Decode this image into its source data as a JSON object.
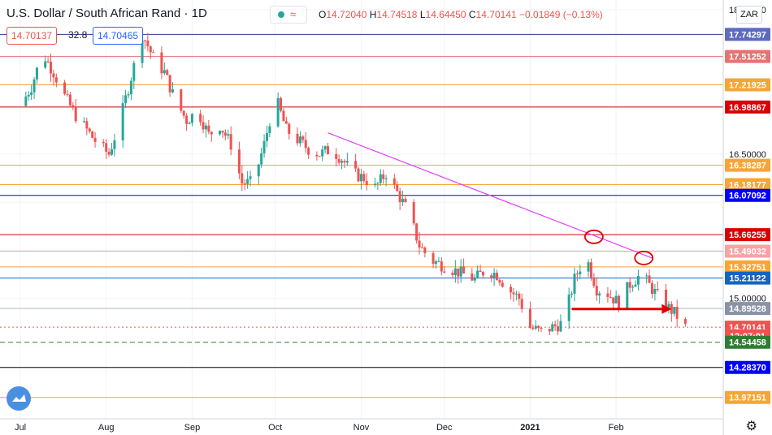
{
  "header": {
    "title": "U.S. Dollar / South African Rand · 1D",
    "open_label": "O",
    "open": "14.72040",
    "high_label": "H",
    "high": "14.74518",
    "low_label": "L",
    "low": "14.64450",
    "close_label": "C",
    "close": "14.70141",
    "change": "−0.01849 (−0.13%)",
    "bid": "14.70137",
    "spread": "32.8",
    "ask": "14.70465",
    "currency": "ZAR"
  },
  "colors": {
    "down": "#ef5350",
    "up": "#26a69a",
    "blue_line": "#0000ff",
    "red_line": "#d80000",
    "orange_line": "#f7a534",
    "pink_line": "#f5a3a3",
    "trendline": "#e040fb",
    "navy_line": "#2b3a8c"
  },
  "chart_data": {
    "type": "candlestick",
    "x_ticks": [
      "Jul",
      "Aug",
      "Sep",
      "Oct",
      "Nov",
      "Dec",
      "2021",
      "Feb"
    ],
    "x_tick_days": [
      0,
      31,
      62,
      92,
      123,
      153,
      184,
      215
    ],
    "y_ticks": [
      18.0,
      17.5,
      17.0,
      16.5,
      16.0,
      15.5,
      15.0
    ],
    "y_tick_labels": [
      "18.00000",
      "",
      "",
      "16.50000",
      "",
      "",
      "15.00000"
    ],
    "ylim": [
      13.75,
      18.1
    ],
    "x_start": "2020-06-19",
    "x_end": "2021-02-10",
    "levels": [
      {
        "value": 17.74297,
        "label": "17.74297",
        "color": "#2b3a8c",
        "label_bg": "#5c6bc0"
      },
      {
        "value": 17.51252,
        "label": "17.51252",
        "color": "#e57373",
        "label_bg": "#e57373"
      },
      {
        "value": 17.21925,
        "label": "17.21925",
        "color": "#f7a534",
        "label_bg": "#f7a534"
      },
      {
        "value": 16.98867,
        "label": "16.98867",
        "color": "#d80000",
        "label_bg": "#d80000"
      },
      {
        "value": 16.38287,
        "label": "16.38287",
        "color": "#f7a534",
        "label_bg": "#f7a534"
      },
      {
        "value": 16.18177,
        "label": "16.18177",
        "color": "#f7a534",
        "label_bg": "#f7a534"
      },
      {
        "value": 16.07092,
        "label": "16.07092",
        "color": "#0000ff",
        "label_bg": "#0000ff"
      },
      {
        "value": 15.66255,
        "label": "15.66255",
        "color": "#d80000",
        "label_bg": "#d80000"
      },
      {
        "value": 15.49032,
        "label": "15.49032",
        "color": "#f5a3a3",
        "label_bg": "#f5a3a3"
      },
      {
        "value": 15.32751,
        "label": "15.32751",
        "color": "#f7a534",
        "label_bg": "#f7a534"
      },
      {
        "value": 15.21122,
        "label": "15.21122",
        "color": "#1565c0",
        "label_bg": "#1565c0"
      },
      {
        "value": 14.89528,
        "label": "14.89528",
        "color": "#b0b8c8",
        "label_bg": "#8a93a6"
      },
      {
        "value": 14.70141,
        "label": "14.70141",
        "color": "#ef5350",
        "label_bg": "#ef5350",
        "dotted": true
      },
      {
        "value": 14.61,
        "label": "12:07:01",
        "color": "#ef5350",
        "label_bg": "#ef5350",
        "nolines": true
      },
      {
        "value": 14.54458,
        "label": "14.54458",
        "color": "#2e7d32",
        "label_bg": "#2e7d32",
        "dashed": true
      },
      {
        "value": 14.2837,
        "label": "14.28370",
        "color": "#000000",
        "label_bg": "#0000ff"
      },
      {
        "value": 13.97151,
        "label": "13.97151",
        "color": "#f7a534",
        "label_bg": "#f7a534"
      }
    ],
    "trendline": {
      "from": {
        "day": 111,
        "value": 16.72
      },
      "to": {
        "day": 228,
        "value": 15.42
      }
    },
    "arrow": {
      "from": {
        "day": 199,
        "value": 14.89
      },
      "to": {
        "day": 235,
        "value": 14.89
      }
    },
    "ellipses": [
      {
        "day": 207,
        "value": 15.64
      },
      {
        "day": 225,
        "value": 15.42
      }
    ],
    "keypoints": [
      [
        0,
        17.0
      ],
      [
        4,
        17.2
      ],
      [
        8,
        17.55
      ],
      [
        12,
        17.35
      ],
      [
        16,
        17.1
      ],
      [
        20,
        16.9
      ],
      [
        24,
        16.75
      ],
      [
        28,
        16.6
      ],
      [
        32,
        16.5
      ],
      [
        36,
        16.85
      ],
      [
        40,
        17.3
      ],
      [
        44,
        17.75
      ],
      [
        48,
        17.5
      ],
      [
        52,
        17.35
      ],
      [
        56,
        17.05
      ],
      [
        60,
        16.85
      ],
      [
        64,
        16.95
      ],
      [
        68,
        16.7
      ],
      [
        72,
        16.8
      ],
      [
        76,
        16.6
      ],
      [
        80,
        16.2
      ],
      [
        84,
        16.2
      ],
      [
        88,
        16.6
      ],
      [
        92,
        17.1
      ],
      [
        96,
        16.75
      ],
      [
        100,
        16.65
      ],
      [
        104,
        16.55
      ],
      [
        108,
        16.5
      ],
      [
        112,
        16.55
      ],
      [
        116,
        16.45
      ],
      [
        120,
        16.3
      ],
      [
        124,
        16.25
      ],
      [
        128,
        16.15
      ],
      [
        132,
        16.3
      ],
      [
        136,
        16.1
      ],
      [
        140,
        15.9
      ],
      [
        144,
        15.55
      ],
      [
        148,
        15.4
      ],
      [
        152,
        15.35
      ],
      [
        156,
        15.3
      ],
      [
        160,
        15.25
      ],
      [
        164,
        15.2
      ],
      [
        168,
        15.3
      ],
      [
        172,
        15.25
      ],
      [
        176,
        15.1
      ],
      [
        180,
        15.0
      ],
      [
        184,
        14.7
      ],
      [
        188,
        14.65
      ],
      [
        192,
        14.7
      ],
      [
        196,
        14.75
      ],
      [
        200,
        15.2
      ],
      [
        204,
        15.45
      ],
      [
        208,
        15.1
      ],
      [
        212,
        15.05
      ],
      [
        216,
        14.95
      ],
      [
        220,
        15.15
      ],
      [
        224,
        15.25
      ],
      [
        228,
        15.1
      ],
      [
        232,
        14.95
      ],
      [
        236,
        14.85
      ],
      [
        240,
        14.7
      ]
    ]
  }
}
